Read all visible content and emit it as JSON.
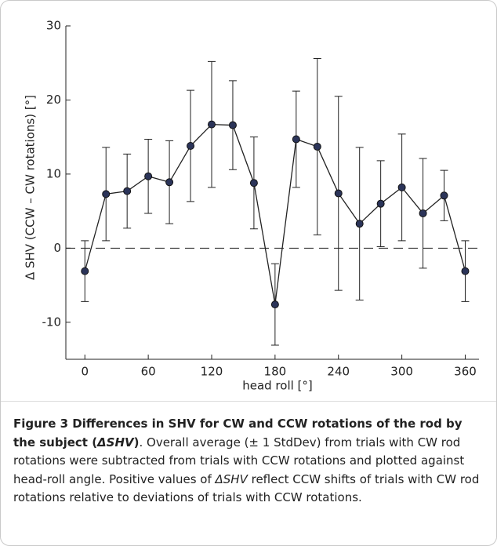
{
  "chart_data": {
    "type": "line",
    "x": [
      0,
      20,
      40,
      60,
      80,
      100,
      120,
      140,
      160,
      180,
      200,
      220,
      240,
      260,
      280,
      300,
      320,
      340,
      360
    ],
    "values": [
      -3.1,
      7.3,
      7.7,
      9.7,
      8.9,
      13.8,
      16.7,
      16.6,
      8.8,
      -7.6,
      14.7,
      13.7,
      7.4,
      3.3,
      6.0,
      8.2,
      4.7,
      7.1,
      -3.1
    ],
    "errors": [
      4.1,
      6.3,
      5.0,
      5.0,
      5.6,
      7.5,
      8.5,
      6.0,
      6.2,
      5.5,
      6.5,
      11.9,
      13.1,
      10.3,
      5.8,
      7.2,
      7.4,
      3.4,
      4.1
    ],
    "color": "#2b3459",
    "xlabel": "head roll [°]",
    "ylabel": "Δ SHV (CCW – CW rotations) [°]",
    "xlim": [
      -18,
      373
    ],
    "xticks": [
      0,
      60,
      120,
      180,
      240,
      300,
      360
    ],
    "ylim": [
      -15,
      30
    ],
    "yticks": [
      -10,
      0,
      10,
      20,
      30
    ],
    "reference_line": 0
  },
  "caption": {
    "segments": [
      "Figure 3 Differences in SHV for CW and CCW rotations of the rod by the subject (",
      "ΔSHV",
      ")",
      ". Overall average (± 1 StdDev) from trials with CW rod rotations were subtracted from trials with CCW rotations and plotted against head-roll angle. Positive values of ",
      "ΔSHV",
      " reflect CCW shifts of trials with CW rod rotations relative to deviations of trials with CCW rotations."
    ]
  }
}
